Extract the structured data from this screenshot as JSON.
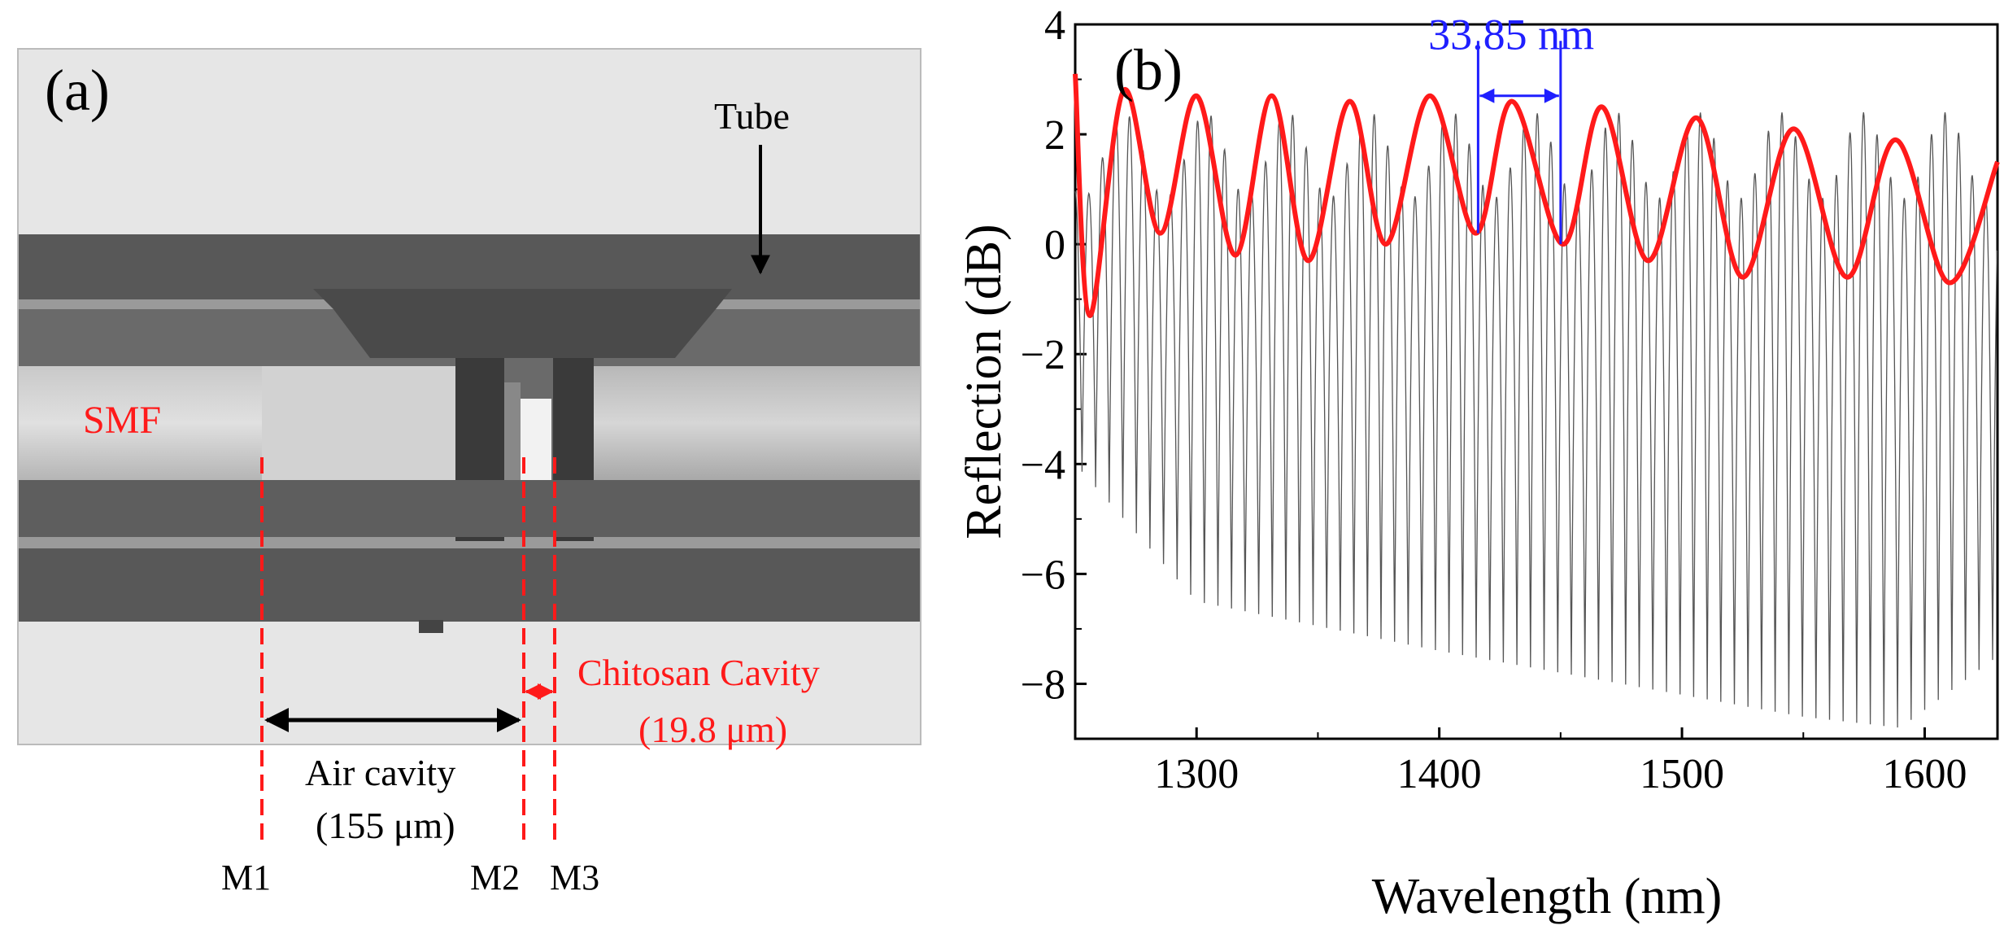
{
  "panel_a": {
    "panel_label": "(a)",
    "labels": {
      "tube": "Tube",
      "smf": "SMF",
      "air_cavity": "Air cavity",
      "air_cavity_length": "(155 μm)",
      "chitosan_cavity": "Chitosan Cavity",
      "chitosan_cavity_length": "(19.8 μm)",
      "m1": "M1",
      "m2": "M2",
      "m3": "M3"
    },
    "colors": {
      "annotation_red": "#ff1a1a",
      "annotation_black": "#000000"
    }
  },
  "chart_data": {
    "type": "line",
    "panel_label": "(b)",
    "xlabel": "Wavelength (nm)",
    "ylabel": "Reflection (dB)",
    "xlim": [
      1250,
      1630
    ],
    "ylim": [
      -9,
      4
    ],
    "xticks": [
      1300,
      1400,
      1500,
      1600
    ],
    "yticks": [
      4,
      2,
      0,
      -2,
      -4,
      -6,
      -8
    ],
    "xtick_labels": [
      "1300",
      "1400",
      "1500",
      "1600"
    ],
    "ytick_labels": [
      "4",
      "2",
      "0",
      "−2",
      "−4",
      "−6",
      "−8"
    ],
    "grid": false,
    "annotation": {
      "text": "33.85 nm",
      "x_start": 1416,
      "x_end": 1450,
      "y": 2.7
    },
    "series": [
      {
        "style": "thin gray fringe spectrum",
        "color": "#555555",
        "fringe_period_nm": 5.6,
        "upper_envelope_db": 2.4,
        "lower_envelope_db": [
          [
            1250,
            -4.0
          ],
          [
            1300,
            -6.5
          ],
          [
            1400,
            -7.4
          ],
          [
            1500,
            -8.2
          ],
          [
            1550,
            -8.6
          ],
          [
            1590,
            -8.8
          ],
          [
            1630,
            -7.5
          ]
        ]
      },
      {
        "style": "thick red upper envelope",
        "color": "#ff1a1a",
        "x": [
          1250,
          1256,
          1270,
          1285,
          1300,
          1316,
          1331,
          1346,
          1363,
          1378,
          1396,
          1415,
          1430,
          1451,
          1467,
          1486,
          1506,
          1525,
          1546,
          1568,
          1588,
          1610,
          1630
        ],
        "y": [
          3.1,
          -1.3,
          2.8,
          0.2,
          2.7,
          -0.2,
          2.7,
          -0.3,
          2.6,
          0.0,
          2.7,
          0.2,
          2.6,
          0.0,
          2.5,
          -0.3,
          2.3,
          -0.6,
          2.1,
          -0.6,
          1.9,
          -0.7,
          1.5
        ]
      }
    ]
  }
}
